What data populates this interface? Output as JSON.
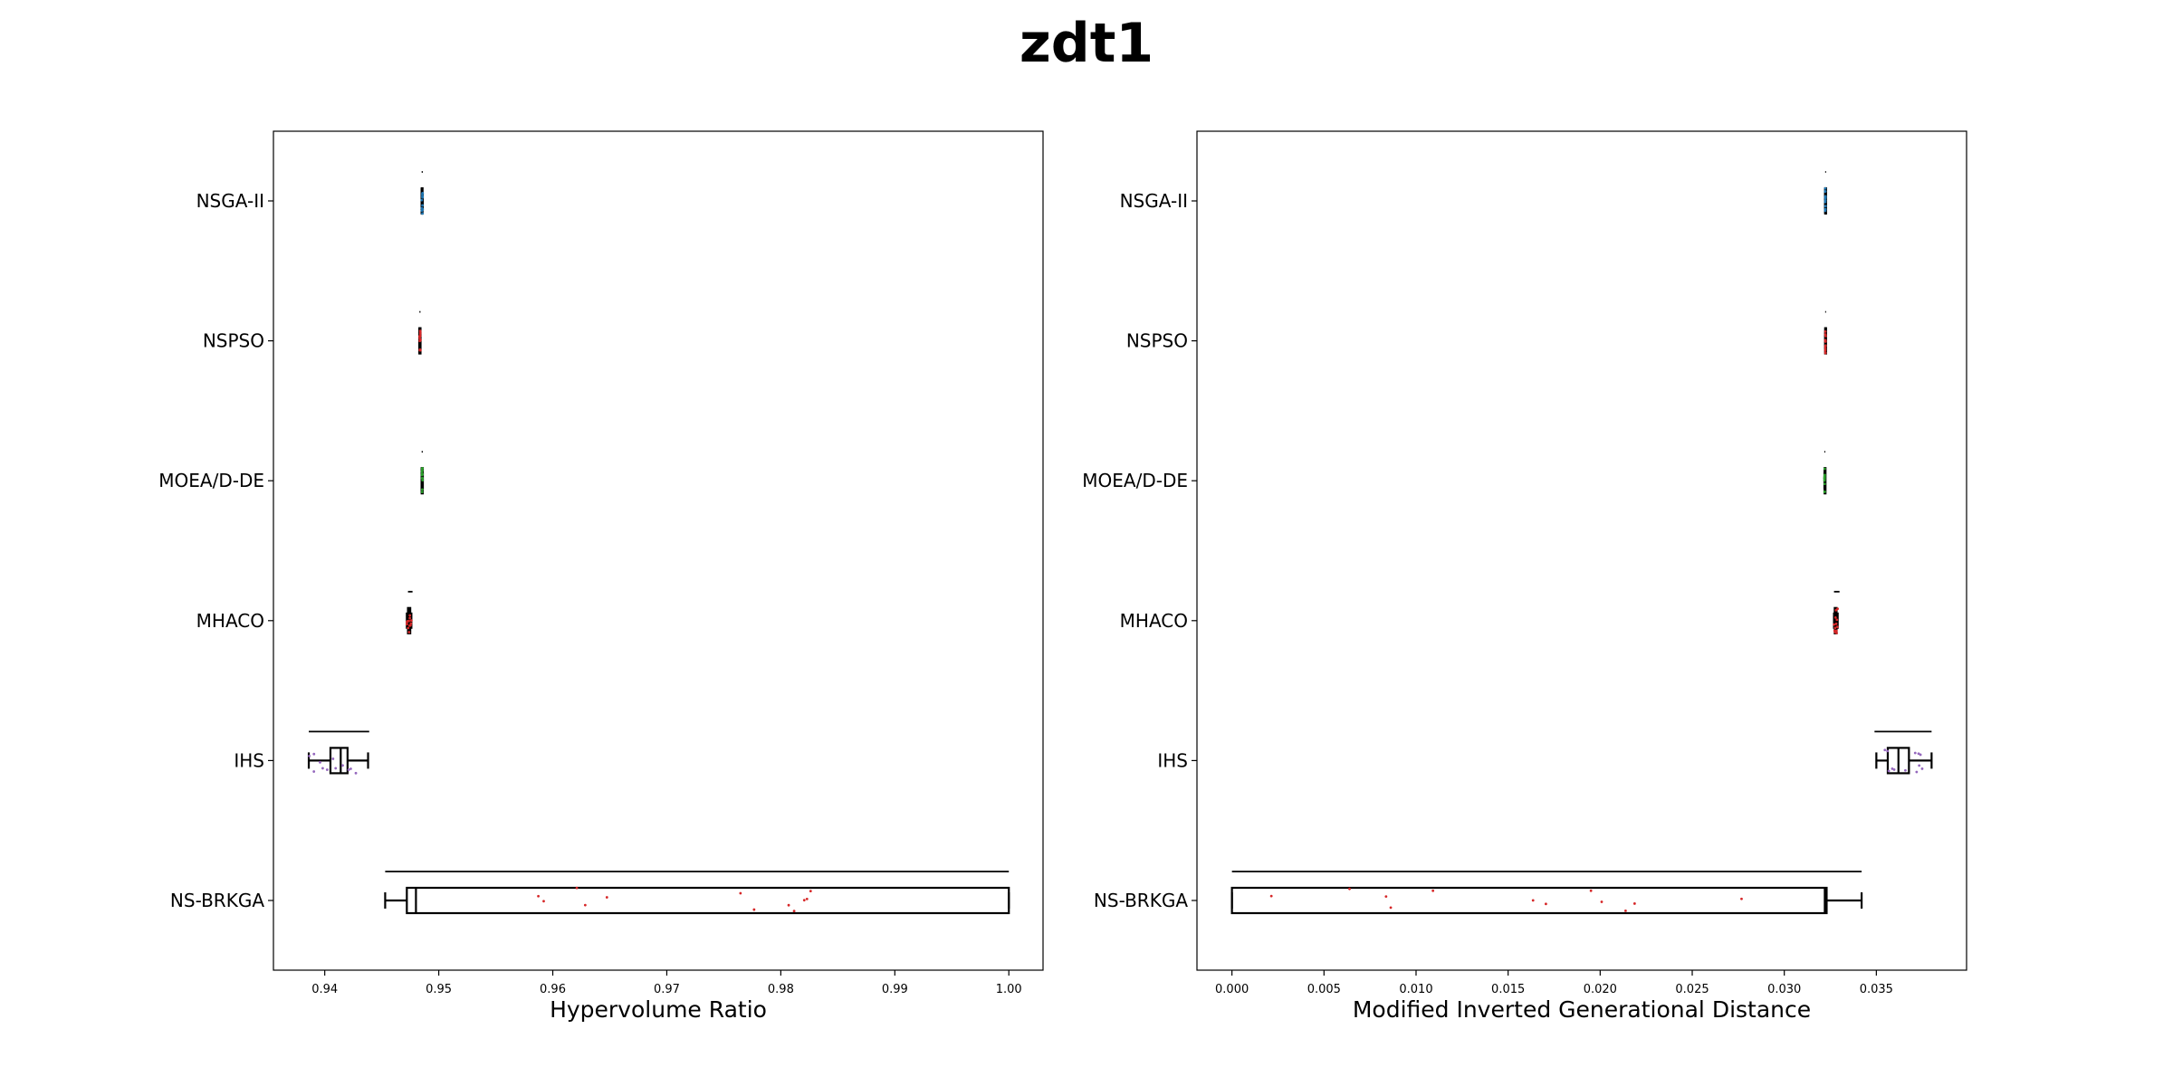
{
  "figure": {
    "title": "zdt1"
  },
  "chart_data": [
    {
      "type": "boxplot",
      "orientation": "horizontal",
      "xlabel": "Hypervolume Ratio",
      "xlim": [
        0.9355,
        1.003
      ],
      "xticks": [
        0.94,
        0.95,
        0.96,
        0.97,
        0.98,
        0.99,
        1.0
      ],
      "xtick_labels": [
        "0.94",
        "0.95",
        "0.96",
        "0.97",
        "0.98",
        "0.99",
        "1.00"
      ],
      "categories": [
        "NSGA-II",
        "NSPSO",
        "MOEA/D-DE",
        "MHACO",
        "IHS",
        "NS-BRKGA"
      ],
      "series": [
        {
          "category": "NSGA-II",
          "whisker_low": 0.9485,
          "q1": 0.9485,
          "median": 0.9485,
          "q3": 0.9485,
          "whisker_high": 0.9486,
          "range": [
            0.9485,
            0.9486
          ],
          "dot_color": "#1f77b4"
        },
        {
          "category": "NSPSO",
          "whisker_low": 0.9483,
          "q1": 0.9483,
          "median": 0.9483,
          "q3": 0.9484,
          "whisker_high": 0.9484,
          "range": [
            0.9483,
            0.9484
          ],
          "dot_color": "#d62728"
        },
        {
          "category": "MOEA/D-DE",
          "whisker_low": 0.9485,
          "q1": 0.9485,
          "median": 0.9485,
          "q3": 0.9486,
          "whisker_high": 0.9486,
          "range": [
            0.9485,
            0.9486
          ],
          "dot_color": "#2ca02c"
        },
        {
          "category": "MHACO",
          "whisker_low": 0.9472,
          "q1": 0.9473,
          "median": 0.9474,
          "q3": 0.9475,
          "whisker_high": 0.9476,
          "range": [
            0.9473,
            0.9477
          ],
          "dot_color": "#d62728"
        },
        {
          "category": "IHS",
          "whisker_low": 0.9386,
          "q1": 0.9405,
          "median": 0.9414,
          "q3": 0.942,
          "whisker_high": 0.9438,
          "range": [
            0.9386,
            0.9439
          ],
          "dot_color": "#9467bd"
        },
        {
          "category": "NS-BRKGA",
          "whisker_low": 0.9453,
          "q1": 0.9472,
          "median": 0.948,
          "q3": 1.0,
          "whisker_high": 1.0,
          "range": [
            0.9453,
            1.0
          ],
          "dot_color": "#d62728"
        }
      ]
    },
    {
      "type": "boxplot",
      "orientation": "horizontal",
      "xlabel": "Modified Inverted Generational Distance",
      "xlim": [
        -0.0019,
        0.0399
      ],
      "xticks": [
        0.0,
        0.005,
        0.01,
        0.015,
        0.02,
        0.025,
        0.03,
        0.035
      ],
      "xtick_labels": [
        "0.000",
        "0.005",
        "0.010",
        "0.015",
        "0.020",
        "0.025",
        "0.030",
        "0.035"
      ],
      "categories": [
        "NSGA-II",
        "NSPSO",
        "MOEA/D-DE",
        "MHACO",
        "IHS",
        "NS-BRKGA"
      ],
      "series": [
        {
          "category": "NSGA-II",
          "whisker_low": 0.03222,
          "q1": 0.03222,
          "median": 0.03222,
          "q3": 0.03223,
          "whisker_high": 0.03224,
          "range": [
            0.03222,
            0.03223
          ],
          "dot_color": "#1f77b4"
        },
        {
          "category": "NSPSO",
          "whisker_low": 0.03222,
          "q1": 0.03222,
          "median": 0.03223,
          "q3": 0.03224,
          "whisker_high": 0.03225,
          "range": [
            0.03222,
            0.03226
          ],
          "dot_color": "#d62728"
        },
        {
          "category": "MOEA/D-DE",
          "whisker_low": 0.03218,
          "q1": 0.03219,
          "median": 0.03219,
          "q3": 0.0322,
          "whisker_high": 0.0322,
          "range": [
            0.03218,
            0.0322
          ],
          "dot_color": "#2ca02c"
        },
        {
          "category": "MHACO",
          "whisker_low": 0.0327,
          "q1": 0.03274,
          "median": 0.03278,
          "q3": 0.03284,
          "whisker_high": 0.0329,
          "range": [
            0.0327,
            0.033
          ],
          "dot_color": "#d62728"
        },
        {
          "category": "IHS",
          "whisker_low": 0.035,
          "q1": 0.03562,
          "median": 0.0362,
          "q3": 0.03677,
          "whisker_high": 0.038,
          "range": [
            0.0349,
            0.038
          ],
          "dot_color": "#9467bd"
        },
        {
          "category": "NS-BRKGA",
          "whisker_low": 0.0,
          "q1": 0.0,
          "median": 0.0322,
          "q3": 0.0323,
          "whisker_high": 0.0342,
          "range": [
            0.0,
            0.0342
          ],
          "dot_color": "#d62728"
        }
      ]
    }
  ]
}
